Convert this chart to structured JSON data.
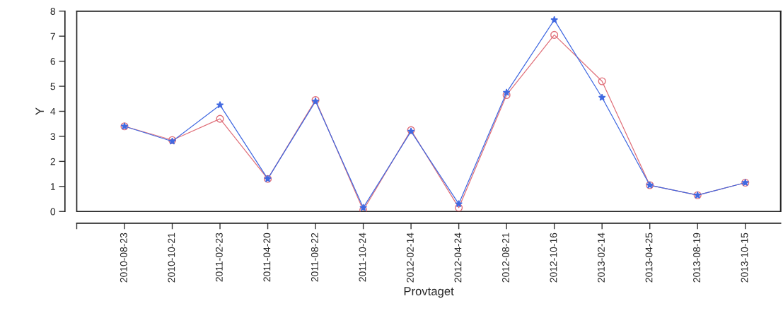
{
  "chart_data": {
    "type": "line",
    "xlabel": "Provtaget",
    "ylabel": "Y",
    "categories": [
      null,
      "2010-08-23",
      "2010-10-21",
      "2011-02-23",
      "2011-04-20",
      "2011-08-22",
      "2011-10-24",
      "2012-02-14",
      "2012-04-24",
      "2012-08-21",
      "2012-10-16",
      "2013-02-14",
      "2013-04-25",
      "2013-08-19",
      "2013-10-15"
    ],
    "series": [
      {
        "color": "#e0707a",
        "marker": "circle",
        "values": [
          null,
          3.4,
          2.85,
          3.7,
          1.3,
          4.45,
          0.05,
          3.25,
          0.15,
          4.65,
          7.05,
          5.2,
          1.05,
          0.65,
          1.15
        ]
      },
      {
        "color": "#4169e1",
        "marker": "star",
        "values": [
          null,
          3.4,
          2.8,
          4.25,
          1.3,
          4.4,
          0.15,
          3.2,
          0.3,
          4.75,
          7.65,
          4.55,
          1.05,
          0.65,
          1.15
        ]
      }
    ],
    "ylim": [
      0,
      8
    ],
    "yticks": [
      0,
      1,
      2,
      3,
      4,
      5,
      6,
      7,
      8
    ],
    "grid": false,
    "line_style": "solid"
  }
}
